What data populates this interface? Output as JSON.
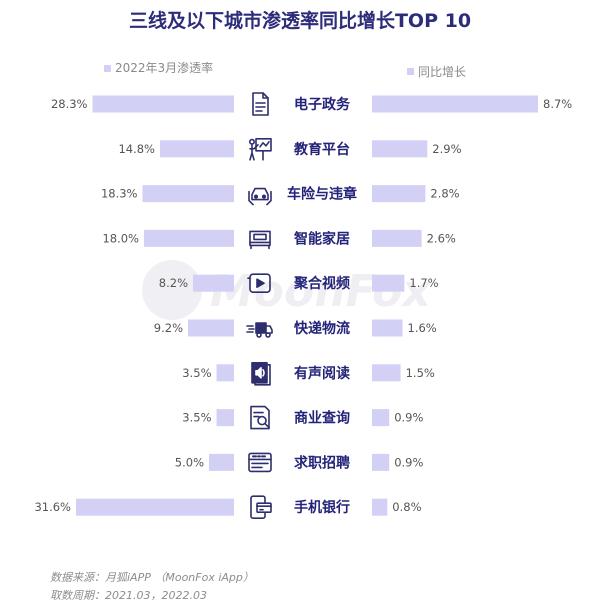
{
  "chart_data": {
    "type": "bar",
    "title": "三线及以下城市渗透率同比增长TOP 10",
    "categories": [
      "电子政务",
      "教育平台",
      "车险与违章",
      "智能家居",
      "聚合视频",
      "快递物流",
      "有声阅读",
      "商业查询",
      "求职招聘",
      "手机银行"
    ],
    "icons": [
      "document-icon",
      "teacher-board-icon",
      "car-icon",
      "bed-icon",
      "video-play-icon",
      "delivery-truck-icon",
      "audiobook-icon",
      "business-search-icon",
      "job-card-icon",
      "mobile-bank-icon"
    ],
    "series": [
      {
        "name": "2022年3月渗透率",
        "values": [
          28.3,
          14.8,
          18.3,
          18.0,
          8.2,
          9.2,
          3.5,
          3.5,
          5.0,
          31.6
        ],
        "labels": [
          "28.3%",
          "14.8%",
          "18.3%",
          "18.0%",
          "8.2%",
          "9.2%",
          "3.5%",
          "3.5%",
          "5.0%",
          "31.6%"
        ]
      },
      {
        "name": "同比增长",
        "values": [
          8.7,
          2.9,
          2.8,
          2.6,
          1.7,
          1.6,
          1.5,
          0.9,
          0.9,
          0.8
        ],
        "labels": [
          "8.7%",
          "2.9%",
          "2.8%",
          "2.6%",
          "1.7%",
          "1.6%",
          "1.5%",
          "0.9%",
          "0.9%",
          "0.8%"
        ]
      }
    ],
    "colors": {
      "bar": "#d3d0f5",
      "title": "#2c2c7a",
      "label": "#23237a",
      "icon": "#2e2e6e"
    }
  },
  "watermark": "MoonFox",
  "footer": {
    "source": "数据来源：月狐iAPP （MoonFox iApp）",
    "period": "取数周期：2021.03，2022.03"
  }
}
